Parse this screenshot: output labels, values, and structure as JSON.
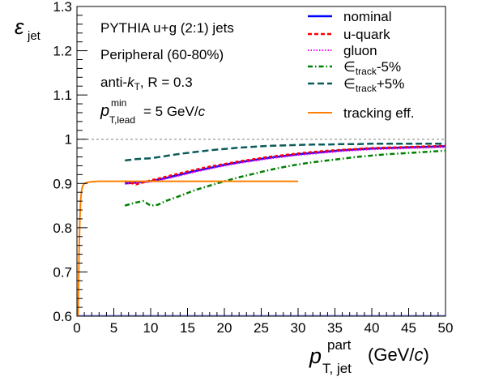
{
  "chart_data": {
    "type": "line",
    "ylabel_main": "ε",
    "ylabel_sub": "jet",
    "xlabel_main": "p",
    "xlabel_sup": "part",
    "xlabel_sub": "T, jet",
    "xlabel_unit_pre": "(GeV/",
    "xlabel_unit_c": "c",
    "xlabel_unit_post": ")",
    "xlim": [
      0,
      50
    ],
    "ylim": [
      0.6,
      1.3
    ],
    "xticks": [
      "0",
      "5",
      "10",
      "15",
      "20",
      "25",
      "30",
      "35",
      "40",
      "45",
      "50"
    ],
    "yticks": [
      "0.6",
      "0.7",
      "0.8",
      "0.9",
      "1",
      "1.1",
      "1.2",
      "1.3"
    ],
    "reference_line_y": 1.0,
    "annotations": {
      "line1": "PYTHIA u+g (2:1) jets",
      "line2": "Peripheral (60-80%)",
      "line3_pre": "anti-",
      "line3_k": "k",
      "line3_sub": "T",
      "line3_post": ", R = 0.3",
      "line4_p": "p",
      "line4_sup": "min",
      "line4_sub": "T,lead",
      "line4_post": " = 5 GeV/",
      "line4_c": "c"
    },
    "legend": [
      {
        "label": "nominal",
        "color": "#0000ff",
        "style": "solid"
      },
      {
        "label": "u-quark",
        "color": "#ff0000",
        "style": "dashed"
      },
      {
        "label": "gluon",
        "color": "#ff00ff",
        "style": "dotted"
      },
      {
        "label_pre": "∈",
        "label_sub": "track",
        "label_post": "-5%",
        "color": "#008000",
        "style": "dashdot"
      },
      {
        "label_pre": "∈",
        "label_sub": "track",
        "label_post": "+5%",
        "color": "#0b5a5a",
        "style": "longdash"
      },
      {
        "label": "tracking eff.",
        "color": "#ff7f00",
        "style": "solid"
      }
    ],
    "series": [
      {
        "name": "nominal",
        "color": "#0000ff",
        "x": [
          6.5,
          8,
          10,
          12,
          14,
          16,
          18,
          20,
          22,
          24,
          26,
          28,
          30,
          32,
          34,
          36,
          38,
          40,
          42,
          44,
          46,
          48,
          50
        ],
        "y": [
          0.9,
          0.902,
          0.905,
          0.912,
          0.92,
          0.928,
          0.935,
          0.942,
          0.948,
          0.953,
          0.958,
          0.962,
          0.966,
          0.969,
          0.972,
          0.975,
          0.977,
          0.979,
          0.98,
          0.981,
          0.982,
          0.983,
          0.984
        ]
      },
      {
        "name": "u-quark",
        "color": "#ff0000",
        "x": [
          6.5,
          8,
          10,
          12,
          14,
          16,
          18,
          20,
          22,
          24,
          26,
          28,
          30,
          32,
          34,
          36,
          38,
          40,
          42,
          44,
          46,
          48,
          50
        ],
        "y": [
          0.905,
          0.898,
          0.907,
          0.915,
          0.923,
          0.931,
          0.938,
          0.944,
          0.95,
          0.955,
          0.96,
          0.964,
          0.968,
          0.971,
          0.974,
          0.976,
          0.978,
          0.98,
          0.981,
          0.982,
          0.983,
          0.984,
          0.985
        ]
      },
      {
        "name": "gluon",
        "color": "#ff00ff",
        "x": [
          6.5,
          8,
          10,
          12,
          14,
          16,
          18,
          20,
          22,
          24,
          26,
          28,
          30,
          32,
          34,
          36,
          38,
          40,
          42,
          44,
          46,
          48,
          50
        ],
        "y": [
          0.899,
          0.901,
          0.904,
          0.91,
          0.918,
          0.926,
          0.933,
          0.94,
          0.946,
          0.951,
          0.956,
          0.96,
          0.964,
          0.967,
          0.97,
          0.973,
          0.975,
          0.977,
          0.978,
          0.979,
          0.98,
          0.981,
          0.982
        ]
      },
      {
        "name": "ε_track -5%",
        "color": "#008000",
        "x": [
          6.5,
          8,
          9,
          10,
          11,
          12,
          14,
          16,
          18,
          20,
          22,
          24,
          26,
          28,
          30,
          32,
          34,
          36,
          38,
          40,
          42,
          44,
          46,
          48,
          50
        ],
        "y": [
          0.85,
          0.857,
          0.86,
          0.85,
          0.852,
          0.86,
          0.872,
          0.885,
          0.895,
          0.905,
          0.914,
          0.922,
          0.93,
          0.937,
          0.943,
          0.948,
          0.952,
          0.956,
          0.96,
          0.963,
          0.966,
          0.968,
          0.97,
          0.972,
          0.974
        ]
      },
      {
        "name": "ε_track +5%",
        "color": "#0b5a5a",
        "x": [
          6.5,
          8,
          10,
          12,
          14,
          16,
          18,
          20,
          22,
          24,
          26,
          28,
          30,
          32,
          34,
          36,
          38,
          40,
          42,
          44,
          46,
          48,
          50
        ],
        "y": [
          0.952,
          0.955,
          0.957,
          0.962,
          0.967,
          0.971,
          0.975,
          0.978,
          0.981,
          0.983,
          0.985,
          0.986,
          0.987,
          0.988,
          0.988,
          0.989,
          0.989,
          0.99,
          0.99,
          0.99,
          0.99,
          0.99,
          0.99
        ]
      },
      {
        "name": "tracking eff.",
        "color": "#ff7f00",
        "x": [
          0.15,
          0.2,
          0.25,
          0.3,
          0.35,
          0.4,
          0.5,
          0.6,
          0.7,
          0.8,
          1.0,
          1.3,
          1.6,
          2,
          3,
          5,
          10,
          20,
          30
        ],
        "y": [
          0.6,
          0.65,
          0.7,
          0.75,
          0.79,
          0.82,
          0.86,
          0.88,
          0.89,
          0.895,
          0.9,
          0.902,
          0.903,
          0.904,
          0.905,
          0.905,
          0.905,
          0.905,
          0.905
        ]
      }
    ]
  }
}
